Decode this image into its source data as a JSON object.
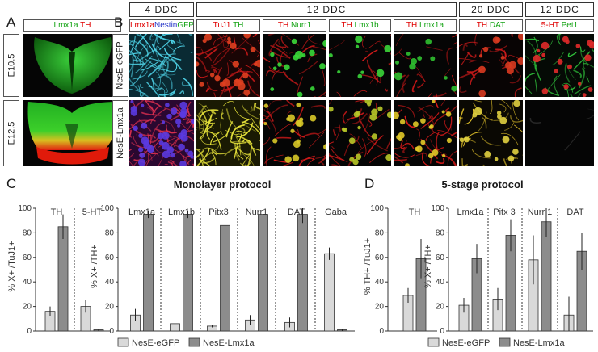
{
  "panel_labels": {
    "A": "A",
    "B": "B",
    "C": "C",
    "D": "D"
  },
  "panelA": {
    "channel": {
      "lmx1a": "Lmx1a",
      "th": "TH"
    },
    "rows": [
      "E10.5",
      "E12.5"
    ]
  },
  "panelB": {
    "headers": [
      "4  DDC",
      "12  DDC",
      "20  DDC",
      "12  DDC"
    ],
    "channels": [
      [
        {
          "t": "Lmx1a",
          "c": "red"
        },
        {
          "t": "Nestin",
          "c": "blue"
        },
        {
          "t": "GFP",
          "c": "green"
        }
      ],
      [
        {
          "t": "TuJ1",
          "c": "red"
        },
        {
          "t": " TH",
          "c": "green"
        }
      ],
      [
        {
          "t": "TH",
          "c": "red"
        },
        {
          "t": " Nurr1",
          "c": "green"
        }
      ],
      [
        {
          "t": "TH",
          "c": "red"
        },
        {
          "t": " Lmx1b",
          "c": "green"
        }
      ],
      [
        {
          "t": "TH",
          "c": "red"
        },
        {
          "t": " Lmx1a",
          "c": "green"
        }
      ],
      [
        {
          "t": "TH",
          "c": "red"
        },
        {
          "t": " DAT",
          "c": "green"
        }
      ],
      [
        {
          "t": "5-HT",
          "c": "red"
        },
        {
          "t": " Pet1",
          "c": "green"
        }
      ]
    ],
    "rows": [
      "NesE-eGFP",
      "NesE-Lmx1a"
    ]
  },
  "colors": {
    "gfp_bar": "#d9d9d9",
    "lmx_bar": "#8c8c8c"
  },
  "chart_data": [
    {
      "type": "bar",
      "title": "Monolayer protocol",
      "ylabel": "% X+ /TuJ1+",
      "ylim": [
        0,
        100
      ],
      "yticks": [
        0,
        20,
        40,
        60,
        80,
        100
      ],
      "categories": [
        "TH",
        "5-HT"
      ],
      "series": [
        {
          "name": "NesE-eGFP",
          "values": [
            16,
            20
          ],
          "errors": [
            4,
            5
          ]
        },
        {
          "name": "NesE-Lmx1a",
          "values": [
            85,
            1
          ],
          "errors": [
            10,
            1
          ]
        }
      ]
    },
    {
      "type": "bar",
      "title": "",
      "ylabel": "% X+ /TH+",
      "ylim": [
        0,
        100
      ],
      "yticks": [
        0,
        20,
        40,
        60,
        80,
        100
      ],
      "categories": [
        "Lmx1a",
        "Lmx1b",
        "Pitx3",
        "Nurr1",
        "DAT",
        "Gaba"
      ],
      "series": [
        {
          "name": "NesE-eGFP",
          "values": [
            13,
            6,
            4,
            9,
            7,
            63
          ],
          "errors": [
            5,
            3,
            1,
            4,
            4,
            5
          ]
        },
        {
          "name": "NesE-Lmx1a",
          "values": [
            95,
            95,
            86,
            95,
            95,
            1
          ],
          "errors": [
            3,
            3,
            4,
            5,
            7,
            1
          ]
        }
      ]
    },
    {
      "type": "bar",
      "title": "5-stage protocol",
      "ylabel": "% TH+ /TuJ1+",
      "ylim": [
        0,
        100
      ],
      "yticks": [
        0,
        20,
        40,
        60,
        80,
        100
      ],
      "categories": [
        "TH"
      ],
      "series": [
        {
          "name": "NesE-eGFP",
          "values": [
            29
          ],
          "errors": [
            6
          ]
        },
        {
          "name": "NesE-Lmx1a",
          "values": [
            59
          ],
          "errors": [
            16
          ]
        }
      ]
    },
    {
      "type": "bar",
      "title": "",
      "ylabel": "% X+ /TH+",
      "ylim": [
        0,
        100
      ],
      "yticks": [
        0,
        20,
        40,
        60,
        80,
        100
      ],
      "categories": [
        "Lmx1a",
        "Pitx 3",
        "Nurr 1",
        "DAT"
      ],
      "series": [
        {
          "name": "NesE-eGFP",
          "values": [
            21,
            26,
            58,
            13
          ],
          "errors": [
            6,
            9,
            20,
            15
          ]
        },
        {
          "name": "NesE-Lmx1a",
          "values": [
            59,
            78,
            89,
            65
          ],
          "errors": [
            12,
            13,
            12,
            15
          ]
        }
      ]
    }
  ],
  "legends": {
    "C": [
      {
        "name": "NesE-eGFP"
      },
      {
        "name": "NesE-Lmx1a"
      }
    ],
    "D": [
      {
        "name": "NesE-eGFP"
      },
      {
        "name": "NesE-Lmx1a"
      }
    ]
  }
}
